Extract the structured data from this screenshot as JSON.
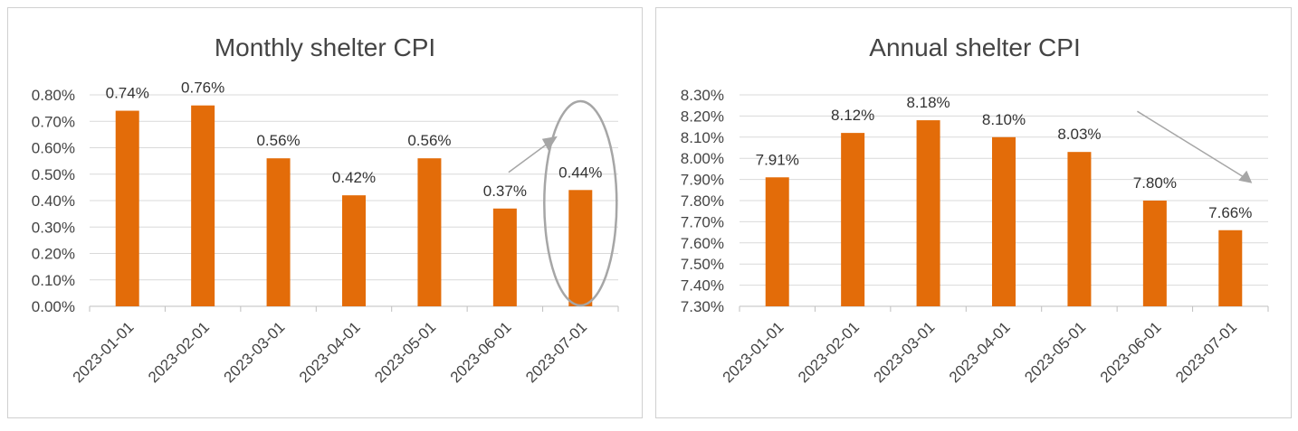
{
  "chart_data": [
    {
      "type": "bar",
      "title": "Monthly shelter CPI",
      "categories": [
        "2023-01-01",
        "2023-02-01",
        "2023-03-01",
        "2023-04-01",
        "2023-05-01",
        "2023-06-01",
        "2023-07-01"
      ],
      "values": [
        0.74,
        0.76,
        0.56,
        0.42,
        0.56,
        0.37,
        0.44
      ],
      "value_labels": [
        "0.74%",
        "0.76%",
        "0.56%",
        "0.42%",
        "0.56%",
        "0.37%",
        "0.44%"
      ],
      "y_ticks": [
        "0.00%",
        "0.10%",
        "0.20%",
        "0.30%",
        "0.40%",
        "0.50%",
        "0.60%",
        "0.70%",
        "0.80%"
      ],
      "ylim": [
        0,
        0.8
      ],
      "xlabel": "",
      "ylabel": "",
      "grid": true,
      "annotations": [
        "upward arrow toward 2023-07-01 bar",
        "ellipse highlighting 2023-07-01 bar"
      ]
    },
    {
      "type": "bar",
      "title": "Annual shelter CPI",
      "categories": [
        "2023-01-01",
        "2023-02-01",
        "2023-03-01",
        "2023-04-01",
        "2023-05-01",
        "2023-06-01",
        "2023-07-01"
      ],
      "values": [
        7.91,
        8.12,
        8.18,
        8.1,
        8.03,
        7.8,
        7.66
      ],
      "value_labels": [
        "7.91%",
        "8.12%",
        "8.18%",
        "8.10%",
        "8.03%",
        "7.80%",
        "7.66%"
      ],
      "y_ticks": [
        "7.30%",
        "7.40%",
        "7.50%",
        "7.60%",
        "7.70%",
        "7.80%",
        "7.90%",
        "8.00%",
        "8.10%",
        "8.20%",
        "8.30%"
      ],
      "ylim": [
        7.3,
        8.3
      ],
      "xlabel": "",
      "ylabel": "",
      "grid": true,
      "annotations": [
        "downward arrow from 8.03% toward 7.66%"
      ]
    }
  ],
  "colors": {
    "bar": "#E36C09",
    "grid": "#d9d9d9",
    "annotation": "#a6a6a6"
  }
}
